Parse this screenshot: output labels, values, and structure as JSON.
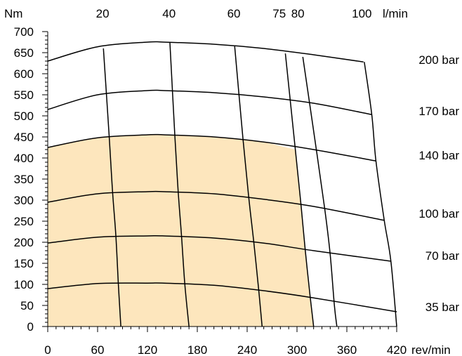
{
  "chart_data": {
    "type": "line",
    "title": "",
    "x_axis": {
      "label": "rev/min",
      "min": 0,
      "max": 420,
      "major_ticks": [
        0,
        60,
        120,
        180,
        240,
        300,
        360,
        420
      ],
      "minor_step": 10
    },
    "y_axis": {
      "label": "Nm",
      "min": 0,
      "max": 700,
      "major_ticks": [
        0,
        50,
        100,
        150,
        200,
        250,
        300,
        350,
        400,
        450,
        500,
        550,
        600,
        650,
        700
      ],
      "minor_step": 10
    },
    "flow_axis": {
      "label": "l/min",
      "labels": [
        {
          "text": "20",
          "rpm": 66
        },
        {
          "text": "40",
          "rpm": 146
        },
        {
          "text": "60",
          "rpm": 224
        },
        {
          "text": "75",
          "rpm": 282
        },
        {
          "text": "80",
          "rpm": 301
        },
        {
          "text": "100",
          "rpm": 378
        }
      ]
    },
    "fill_color": "#fde6bd",
    "line_color": "#000000",
    "pressure_curves": [
      {
        "label": "200 bar",
        "points": [
          [
            0,
            630
          ],
          [
            60,
            664
          ],
          [
            120,
            675
          ],
          [
            140,
            675
          ],
          [
            200,
            670
          ],
          [
            260,
            660
          ],
          [
            320,
            645
          ],
          [
            380,
            628
          ]
        ]
      },
      {
        "label": "170 bar",
        "points": [
          [
            0,
            515
          ],
          [
            60,
            550
          ],
          [
            120,
            560
          ],
          [
            140,
            560
          ],
          [
            200,
            555
          ],
          [
            260,
            545
          ],
          [
            320,
            530
          ],
          [
            390,
            503
          ]
        ]
      },
      {
        "label": "140 bar",
        "points": [
          [
            0,
            425
          ],
          [
            60,
            448
          ],
          [
            120,
            455
          ],
          [
            140,
            455
          ],
          [
            200,
            450
          ],
          [
            260,
            438
          ],
          [
            320,
            420
          ],
          [
            395,
            393
          ]
        ]
      },
      {
        "label": "100 bar",
        "points": [
          [
            0,
            295
          ],
          [
            60,
            315
          ],
          [
            120,
            320
          ],
          [
            140,
            320
          ],
          [
            200,
            315
          ],
          [
            260,
            302
          ],
          [
            320,
            285
          ],
          [
            405,
            252
          ]
        ]
      },
      {
        "label": "70 bar",
        "points": [
          [
            0,
            198
          ],
          [
            60,
            212
          ],
          [
            120,
            215
          ],
          [
            140,
            215
          ],
          [
            200,
            210
          ],
          [
            260,
            198
          ],
          [
            320,
            180
          ],
          [
            413,
            155
          ]
        ]
      },
      {
        "label": "35 bar",
        "points": [
          [
            0,
            90
          ],
          [
            60,
            102
          ],
          [
            120,
            103
          ],
          [
            140,
            103
          ],
          [
            200,
            98
          ],
          [
            260,
            85
          ],
          [
            320,
            68
          ],
          [
            420,
            35
          ]
        ]
      }
    ],
    "flow_lines": [
      {
        "label": "20",
        "points": [
          [
            67,
            660
          ],
          [
            74,
            450
          ],
          [
            78,
            320
          ],
          [
            82,
            215
          ],
          [
            85,
            100
          ],
          [
            88,
            0
          ]
        ]
      },
      {
        "label": "40",
        "points": [
          [
            147,
            675
          ],
          [
            153,
            452
          ],
          [
            157,
            320
          ],
          [
            161,
            215
          ],
          [
            165,
            100
          ],
          [
            170,
            0
          ]
        ]
      },
      {
        "label": "60",
        "points": [
          [
            225,
            665
          ],
          [
            235,
            445
          ],
          [
            242,
            305
          ],
          [
            248,
            200
          ],
          [
            254,
            85
          ],
          [
            258,
            0
          ]
        ]
      },
      {
        "label": "75",
        "points": [
          [
            286,
            648
          ],
          [
            298,
            420
          ],
          [
            305,
            285
          ],
          [
            310,
            180
          ],
          [
            316,
            68
          ],
          [
            320,
            0
          ]
        ]
      },
      {
        "label": "80",
        "points": [
          [
            307,
            640
          ],
          [
            324,
            410
          ],
          [
            334,
            270
          ],
          [
            340,
            170
          ],
          [
            345,
            50
          ],
          [
            348,
            0
          ]
        ]
      },
      {
        "label": "100",
        "points": [
          [
            381,
            628
          ],
          [
            390,
            503
          ],
          [
            395,
            393
          ],
          [
            405,
            252
          ],
          [
            413,
            155
          ],
          [
            420,
            0
          ]
        ]
      }
    ],
    "shaded_region": {
      "description": "continuous operating region",
      "upper_curve": "140 bar",
      "right_line": "75"
    }
  }
}
